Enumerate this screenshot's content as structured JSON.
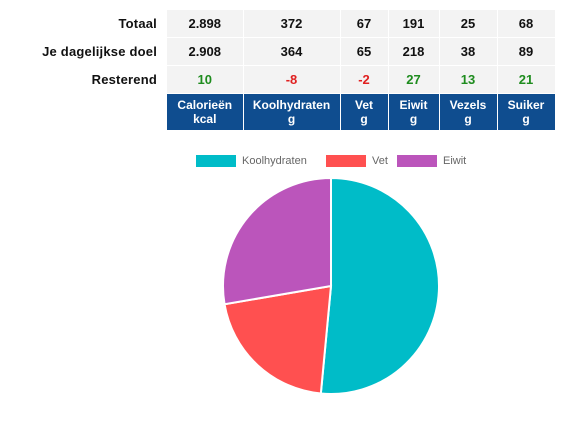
{
  "table": {
    "rows": [
      {
        "label": "Totaal",
        "values": [
          "2.898",
          "372",
          "67",
          "191",
          "25",
          "68"
        ]
      },
      {
        "label": "Je dagelijkse doel",
        "values": [
          "2.908",
          "364",
          "65",
          "218",
          "38",
          "89"
        ]
      },
      {
        "label": "Resterend",
        "values": [
          "10",
          "-8",
          "-2",
          "27",
          "13",
          "21"
        ],
        "status": [
          "pos",
          "neg",
          "neg",
          "pos",
          "pos",
          "pos"
        ]
      }
    ],
    "columns": [
      {
        "name": "Calorieën",
        "unit": "kcal"
      },
      {
        "name": "Koolhydraten",
        "unit": "g"
      },
      {
        "name": "Vet",
        "unit": "g"
      },
      {
        "name": "Eiwit",
        "unit": "g"
      },
      {
        "name": "Vezels",
        "unit": "g"
      },
      {
        "name": "Suiker",
        "unit": "g"
      }
    ]
  },
  "colors": {
    "header_bg": "#0f4d8f",
    "positive": "#1e8c1e",
    "negative": "#e02020"
  },
  "chart_data": {
    "type": "pie",
    "labels": [
      "Koolhydraten",
      "Vet",
      "Eiwit"
    ],
    "values": [
      51.5,
      20.8,
      27.7
    ],
    "colors": [
      "#00bcc8",
      "#ff5050",
      "#bb55bb"
    ],
    "legend_position": "top-center"
  }
}
